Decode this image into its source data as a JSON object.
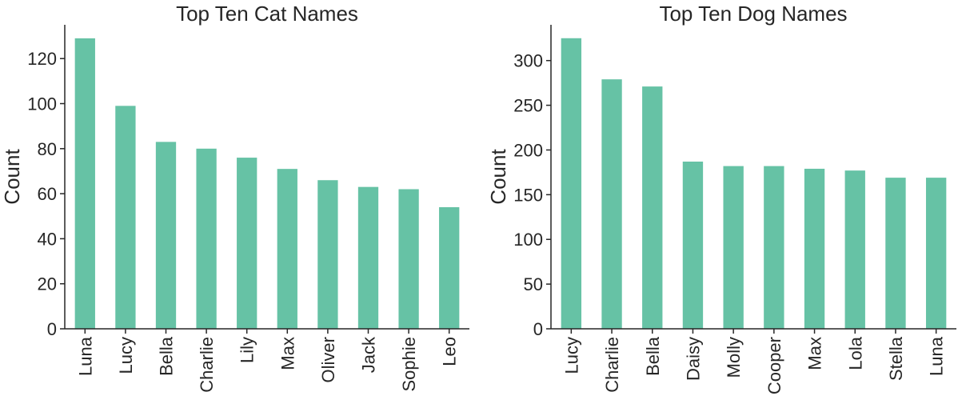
{
  "colors": {
    "bar": "#66c2a5",
    "axis": "#262626",
    "text": "#262626"
  },
  "chart_data": [
    {
      "type": "bar",
      "title": "Top Ten Cat Names",
      "xlabel": "",
      "ylabel": "Count",
      "categories": [
        "Luna",
        "Lucy",
        "Bella",
        "Charlie",
        "Lily",
        "Max",
        "Oliver",
        "Jack",
        "Sophie",
        "Leo"
      ],
      "values": [
        129,
        99,
        83,
        80,
        76,
        71,
        66,
        63,
        62,
        54
      ],
      "ylim": [
        0,
        135
      ],
      "yticks": [
        0,
        20,
        40,
        60,
        80,
        100,
        120
      ],
      "grid": false,
      "legend": "none"
    },
    {
      "type": "bar",
      "title": "Top Ten Dog Names",
      "xlabel": "",
      "ylabel": "Count",
      "categories": [
        "Lucy",
        "Charlie",
        "Bella",
        "Daisy",
        "Molly",
        "Cooper",
        "Max",
        "Lola",
        "Stella",
        "Luna"
      ],
      "values": [
        325,
        279,
        271,
        187,
        182,
        182,
        179,
        177,
        169,
        169
      ],
      "ylim": [
        0,
        340
      ],
      "yticks": [
        0,
        50,
        100,
        150,
        200,
        250,
        300
      ],
      "grid": false,
      "legend": "none"
    }
  ]
}
